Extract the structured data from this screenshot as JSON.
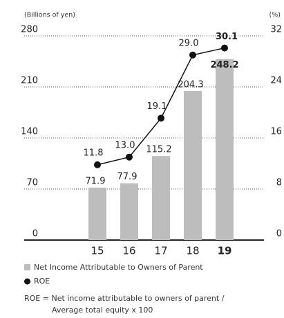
{
  "chart_data": {
    "type": "bar_line",
    "y_axis_label": "(Billions of yen)",
    "y2_axis_label": "(%)",
    "categories": [
      "15",
      "16",
      "17",
      "18",
      "19"
    ],
    "series": [
      {
        "name": "Net Income Attributable to Owners of Parent",
        "color": "#bdbdbd",
        "type": "bar",
        "values": [
          71.9,
          77.9,
          115.2,
          204.3,
          248.2
        ]
      },
      {
        "name": "ROE",
        "color": "#111111",
        "type": "line",
        "axis": "y2",
        "values": [
          11.8,
          13.0,
          19.1,
          29.0,
          30.1
        ],
        "value_labels": [
          "11.8",
          "13.0",
          "19.1",
          "29.0",
          "30.1"
        ]
      }
    ],
    "ylim": [
      0,
      280
    ],
    "yticks": [
      0,
      70,
      140,
      210,
      280
    ],
    "y2lim": [
      0,
      32
    ],
    "y2ticks": [
      0,
      8,
      16,
      24,
      32
    ],
    "grid": true,
    "notes": [
      "ROE = Net income attributable to owners of parent /",
      "Average total equity x 100"
    ]
  }
}
